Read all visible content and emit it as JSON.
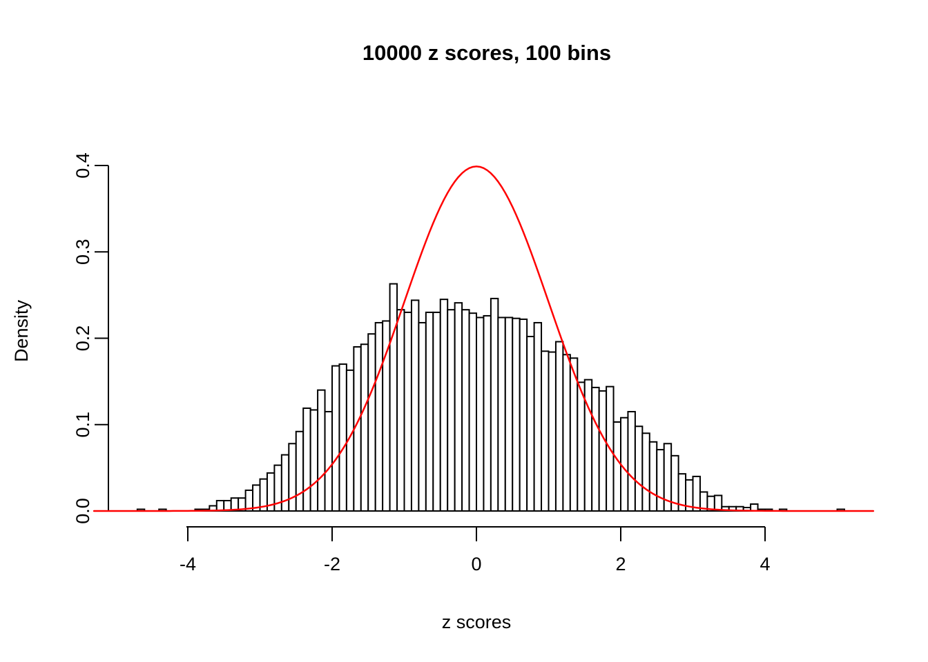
{
  "figure": {
    "background_color": "#FFFFFF",
    "foreground_color": "#000000"
  },
  "chart_data": {
    "type": "bar",
    "subtype": "histogram-with-density-curve",
    "title": "10000 z scores, 100 bins",
    "xlabel": "z scores",
    "ylabel": "Density",
    "x_ticks": [
      -4,
      -2,
      0,
      2,
      4
    ],
    "x_tick_labels": [
      "-4",
      "-2",
      "0",
      "2",
      "4"
    ],
    "y_ticks": [
      0.0,
      0.1,
      0.2,
      0.3,
      0.4
    ],
    "y_tick_labels": [
      "0.0",
      "0.1",
      "0.2",
      "0.3",
      "0.4"
    ],
    "xlim": [
      -5.3,
      5.5
    ],
    "ylim": [
      0.0,
      0.4
    ],
    "grid": false,
    "legend": "none",
    "bin_count": 100,
    "bin_width": 0.1,
    "bins_start": -4.7,
    "bar_fill": "#FFFFFF",
    "bar_stroke": "#000000",
    "bar_densities": [
      0.002,
      0,
      0,
      0.002,
      0,
      0,
      0,
      0,
      0.002,
      0.002,
      0.006,
      0.012,
      0.012,
      0.015,
      0.015,
      0.024,
      0.03,
      0.037,
      0.044,
      0.053,
      0.065,
      0.078,
      0.092,
      0.119,
      0.117,
      0.14,
      0.115,
      0.168,
      0.17,
      0.163,
      0.19,
      0.193,
      0.205,
      0.218,
      0.22,
      0.263,
      0.233,
      0.23,
      0.244,
      0.218,
      0.23,
      0.23,
      0.245,
      0.233,
      0.241,
      0.233,
      0.229,
      0.224,
      0.226,
      0.246,
      0.224,
      0.224,
      0.223,
      0.222,
      0.202,
      0.218,
      0.185,
      0.184,
      0.196,
      0.181,
      0.177,
      0.149,
      0.152,
      0.143,
      0.139,
      0.144,
      0.103,
      0.108,
      0.115,
      0.098,
      0.09,
      0.08,
      0.071,
      0.078,
      0.064,
      0.043,
      0.036,
      0.04,
      0.022,
      0.017,
      0.018,
      0.005,
      0.005,
      0.005,
      0.004,
      0.008,
      0.002,
      0.002,
      0,
      0.002,
      0,
      0,
      0,
      0,
      0,
      0,
      0,
      0.002,
      0,
      0
    ],
    "overlay_curve": {
      "name": "standard-normal-density",
      "color": "#FF0000",
      "mean": 0,
      "sd": 1,
      "peak_density": 0.3989,
      "x_from": -5.3,
      "x_to": 5.5
    }
  }
}
